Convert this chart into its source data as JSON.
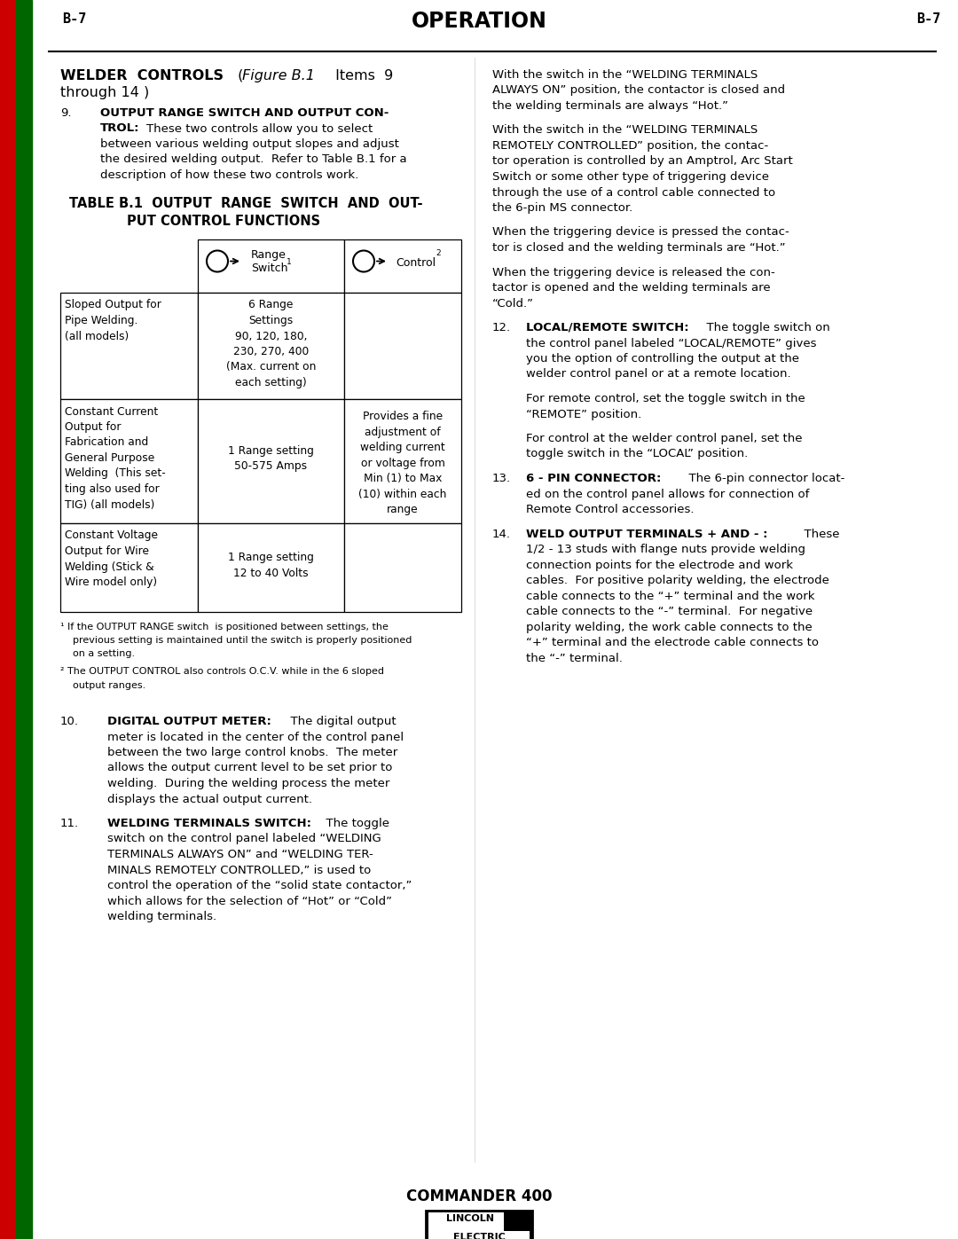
{
  "page_label": "B-7",
  "page_title": "OPERATION",
  "bg_color": "#ffffff",
  "sidebar_red": "#cc0000",
  "sidebar_green": "#006600",
  "header": {
    "label_left": "B-7",
    "label_right": "B-7",
    "title": "OPERATION"
  },
  "table_title_line1": "TABLE B.1  OUTPUT  RANGE  SWITCH  AND  OUT-",
  "table_title_line2": "PUT CONTROL FUNCTIONS",
  "footnote1_line1": "¹ If the OUTPUT RANGE switch  is positioned between settings, the",
  "footnote1_line2": "previous setting is maintained until the switch is properly positioned",
  "footnote1_line3": "on a setting.",
  "footnote2_line1": "² The OUTPUT CONTROL also controls O.C.V. while in the 6 sloped",
  "footnote2_line2": "output ranges.",
  "footer_text": "COMMANDER 400",
  "lincoln_top": "LINCOLN",
  "lincoln_reg": "®",
  "lincoln_bottom": "ELECTRIC"
}
